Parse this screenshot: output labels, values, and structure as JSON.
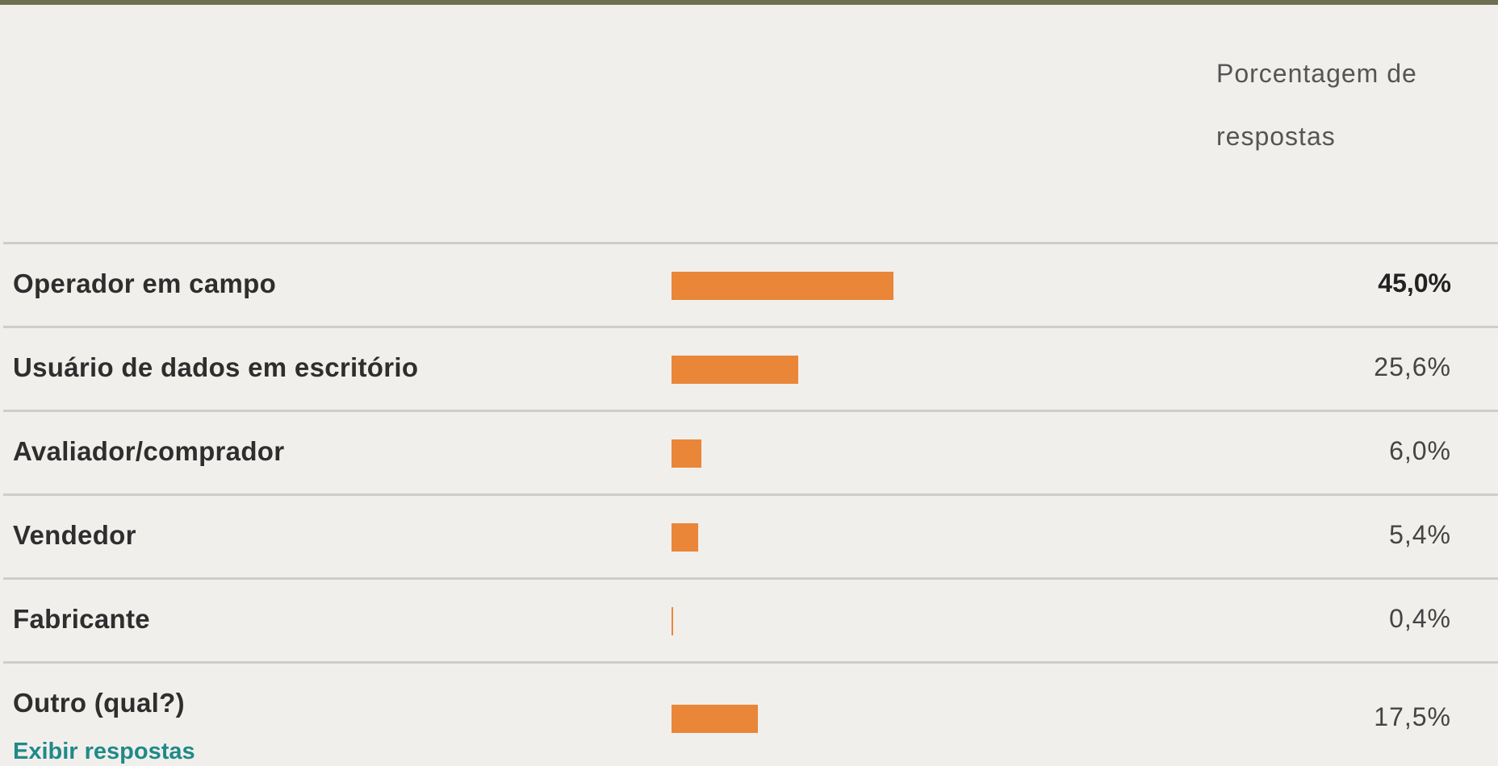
{
  "header": {
    "column_title": "Porcentagem de respostas"
  },
  "rows": [
    {
      "label": "Operador em campo",
      "value_text": "45,0%",
      "bold_value": true
    },
    {
      "label": "Usuário de dados em escritório",
      "value_text": "25,6%",
      "bold_value": false
    },
    {
      "label": "Avaliador/comprador",
      "value_text": "6,0%",
      "bold_value": false
    },
    {
      "label": "Vendedor",
      "value_text": "5,4%",
      "bold_value": false
    },
    {
      "label": "Fabricante",
      "value_text": "0,4%",
      "bold_value": false
    },
    {
      "label": "Outro (qual?)",
      "value_text": "17,5%",
      "bold_value": false,
      "link": "Exibir respostas"
    }
  ],
  "colors": {
    "bar": "#ea8637",
    "link": "#1f8a88",
    "top_rule": "#6f7052",
    "background": "#f1efec"
  },
  "chart_data": {
    "type": "bar",
    "orientation": "horizontal",
    "categories": [
      "Operador em campo",
      "Usuário de dados em escritório",
      "Avaliador/comprador",
      "Vendedor",
      "Fabricante",
      "Outro (qual?)"
    ],
    "values": [
      45.0,
      25.6,
      6.0,
      5.4,
      0.4,
      17.5
    ],
    "value_labels": [
      "45,0%",
      "25,6%",
      "6,0%",
      "5,4%",
      "0,4%",
      "17,5%"
    ],
    "ylabel": "Porcentagem de respostas",
    "xlim": [
      0,
      100
    ],
    "grid": false,
    "legend": "none"
  }
}
